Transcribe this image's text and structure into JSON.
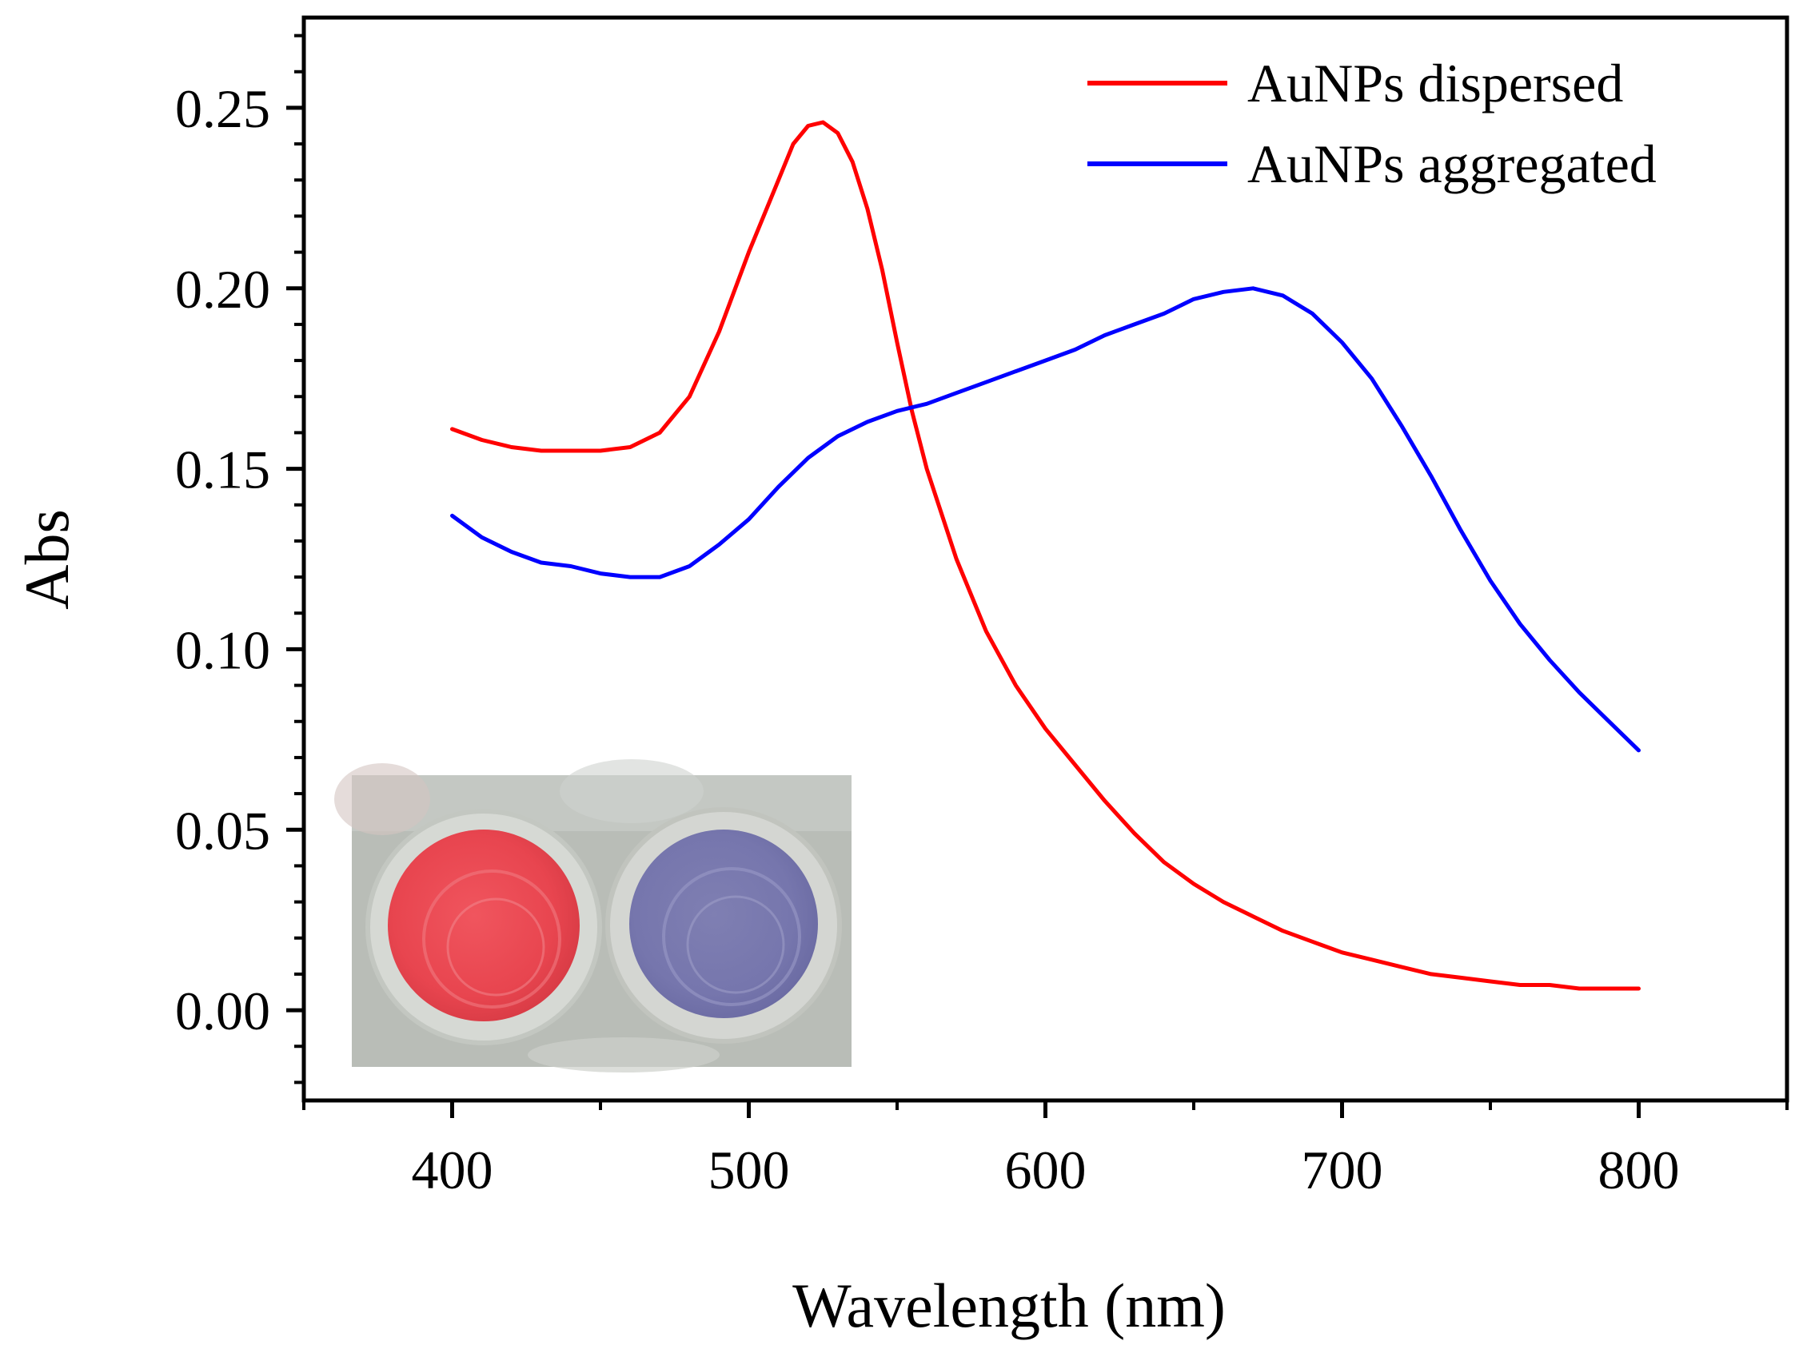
{
  "chart_data": {
    "type": "line",
    "title": "",
    "xlabel": "Wavelength (nm)",
    "ylabel": "Abs",
    "xlim": [
      350,
      850
    ],
    "ylim": [
      -0.025,
      0.275
    ],
    "x_ticks": [
      400,
      500,
      600,
      700,
      800
    ],
    "x_tick_labels": [
      "400",
      "500",
      "600",
      "700",
      "800"
    ],
    "y_ticks": [
      0.0,
      0.05,
      0.1,
      0.15,
      0.2,
      0.25
    ],
    "y_tick_labels": [
      "0.00",
      "0.05",
      "0.10",
      "0.15",
      "0.20",
      "0.25"
    ],
    "legend_position": "top-right",
    "inset": "photo of two wells: red solution (dispersed) and blue-purple solution (aggregated)",
    "series": [
      {
        "name": "AuNPs dispersed",
        "color": "#ff0000",
        "x": [
          400,
          410,
          420,
          430,
          440,
          450,
          460,
          470,
          480,
          490,
          500,
          510,
          515,
          520,
          525,
          530,
          535,
          540,
          545,
          550,
          555,
          560,
          570,
          580,
          590,
          600,
          610,
          620,
          630,
          640,
          650,
          660,
          670,
          680,
          690,
          700,
          710,
          720,
          730,
          740,
          750,
          760,
          770,
          780,
          790,
          800
        ],
        "values": [
          0.161,
          0.158,
          0.156,
          0.155,
          0.155,
          0.155,
          0.156,
          0.16,
          0.17,
          0.188,
          0.21,
          0.23,
          0.24,
          0.245,
          0.246,
          0.243,
          0.235,
          0.222,
          0.205,
          0.185,
          0.166,
          0.15,
          0.125,
          0.105,
          0.09,
          0.078,
          0.068,
          0.058,
          0.049,
          0.041,
          0.035,
          0.03,
          0.026,
          0.022,
          0.019,
          0.016,
          0.014,
          0.012,
          0.01,
          0.009,
          0.008,
          0.007,
          0.007,
          0.006,
          0.006,
          0.006
        ]
      },
      {
        "name": "AuNPs aggregated",
        "color": "#0000ff",
        "x": [
          400,
          410,
          420,
          430,
          440,
          450,
          460,
          470,
          480,
          490,
          500,
          510,
          520,
          530,
          540,
          550,
          560,
          570,
          580,
          590,
          600,
          610,
          620,
          630,
          640,
          650,
          660,
          670,
          680,
          690,
          700,
          710,
          720,
          730,
          740,
          750,
          760,
          770,
          780,
          790,
          800
        ],
        "values": [
          0.137,
          0.131,
          0.127,
          0.124,
          0.123,
          0.121,
          0.12,
          0.12,
          0.123,
          0.129,
          0.136,
          0.145,
          0.153,
          0.159,
          0.163,
          0.166,
          0.168,
          0.171,
          0.174,
          0.177,
          0.18,
          0.183,
          0.187,
          0.19,
          0.193,
          0.197,
          0.199,
          0.2,
          0.198,
          0.193,
          0.185,
          0.175,
          0.162,
          0.148,
          0.133,
          0.119,
          0.107,
          0.097,
          0.088,
          0.08,
          0.072
        ]
      }
    ]
  }
}
